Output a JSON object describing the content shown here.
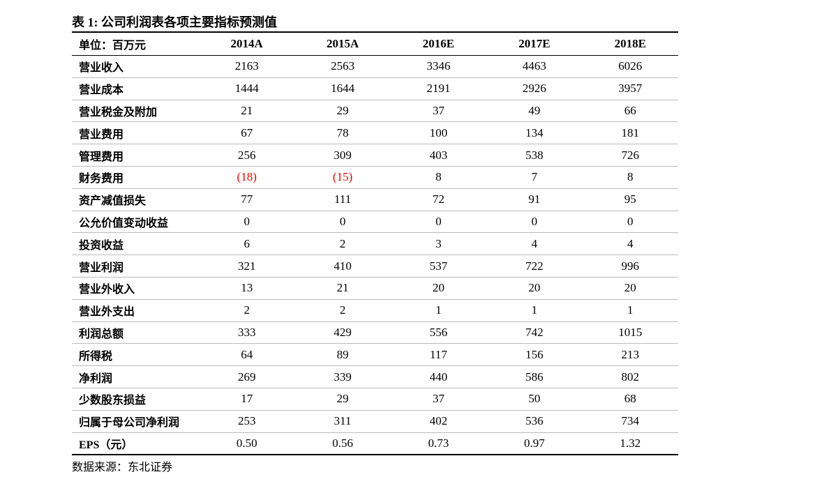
{
  "header": {
    "title": "表 1: 公司利润表各项主要指标预测值"
  },
  "table": {
    "columns": [
      "单位：百万元",
      "2014A",
      "2015A",
      "2016E",
      "2017E",
      "2018E"
    ],
    "rows": [
      [
        "营业收入",
        "2163",
        "2563",
        "3346",
        "4463",
        "6026"
      ],
      [
        "营业成本",
        "1444",
        "1644",
        "2191",
        "2926",
        "3957"
      ],
      [
        "营业税金及附加",
        "21",
        "29",
        "37",
        "49",
        "66"
      ],
      [
        "营业费用",
        "67",
        "78",
        "100",
        "134",
        "181"
      ],
      [
        "管理费用",
        "256",
        "309",
        "403",
        "538",
        "726"
      ],
      [
        "财务费用",
        "(18)",
        "(15)",
        "8",
        "7",
        "8"
      ],
      [
        "资产减值损失",
        "77",
        "111",
        "72",
        "91",
        "95"
      ],
      [
        "公允价值变动收益",
        "0",
        "0",
        "0",
        "0",
        "0"
      ],
      [
        "投资收益",
        "6",
        "2",
        "3",
        "4",
        "4"
      ],
      [
        "营业利润",
        "321",
        "410",
        "537",
        "722",
        "996"
      ],
      [
        "营业外收入",
        "13",
        "21",
        "20",
        "20",
        "20"
      ],
      [
        "营业外支出",
        "2",
        "2",
        "1",
        "1",
        "1"
      ],
      [
        "利润总额",
        "333",
        "429",
        "556",
        "742",
        "1015"
      ],
      [
        "所得税",
        "64",
        "89",
        "117",
        "156",
        "213"
      ],
      [
        "净利润",
        "269",
        "339",
        "440",
        "586",
        "802"
      ],
      [
        "少数股东损益",
        "17",
        "29",
        "37",
        "50",
        "68"
      ],
      [
        "归属于母公司净利润",
        "253",
        "311",
        "402",
        "536",
        "734"
      ],
      [
        "EPS（元）",
        "0.50",
        "0.56",
        "0.73",
        "0.97",
        "1.32"
      ]
    ]
  },
  "footer": {
    "source": "数据来源：东北证券"
  }
}
